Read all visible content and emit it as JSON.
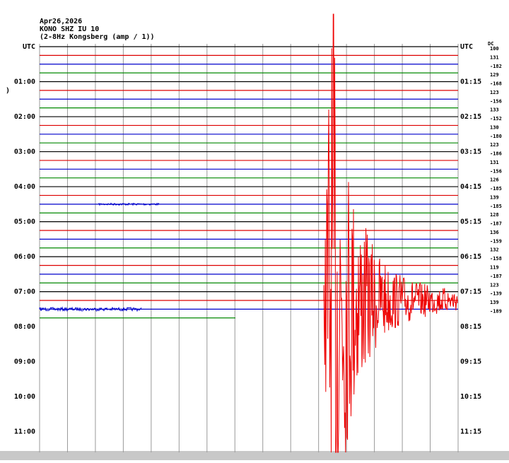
{
  "header": {
    "lines": [
      "Apr26,2026",
      "KONO SHZ IU 10",
      "(2-8Hz Kongsberg (amp / 1))"
    ]
  },
  "marker": ")",
  "left_labels": [
    "UTC",
    "01:00",
    "02:00",
    "03:00",
    "04:00",
    "05:00",
    "06:00",
    "07:00",
    "08:00",
    "09:00",
    "10:00",
    "11:00"
  ],
  "right_labels": [
    "UTC",
    "01:15",
    "02:15",
    "03:15",
    "04:15",
    "05:15",
    "06:15",
    "07:15",
    "08:15",
    "09:15",
    "10:15",
    "11:15"
  ],
  "offset_title": "DC",
  "offsets": [
    "100",
    "131",
    "-182",
    "129",
    "-168",
    "123",
    "-156",
    "133",
    "-152",
    "130",
    "-180",
    "123",
    "-186",
    "131",
    "-156",
    "126",
    "-185",
    "139",
    "-185",
    "128",
    "-187",
    "136",
    "-159",
    "132",
    "-158",
    "119",
    "-187",
    "123",
    "-139",
    "139",
    "-189"
  ]
}
